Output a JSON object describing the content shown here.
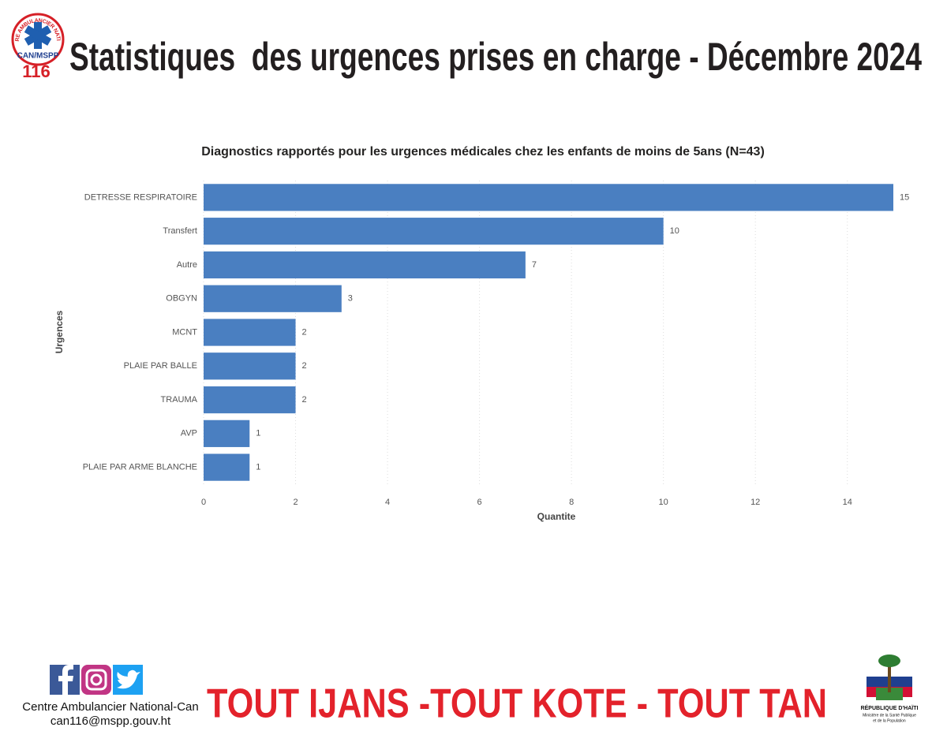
{
  "header": {
    "title": "Statistiques  des urgences prises en charge - Décembre 2024",
    "logo_ring": "CENTRE AMBULANCIER NATIONAL",
    "logo_org": "CAN/MSPP",
    "logo_number": "116"
  },
  "chart_data": {
    "type": "bar",
    "title": "Diagnostics rapportés pour les urgences médicales chez les enfants de moins de 5ans (N=43)",
    "x_label": "Quantite",
    "y_label": "Urgences",
    "categories": [
      "DETRESSE RESPIRATOIRE",
      "Transfert",
      "Autre",
      "OBGYN",
      "MCNT",
      "PLAIE PAR BALLE",
      "TRAUMA",
      "AVP",
      "PLAIE PAR ARME BLANCHE"
    ],
    "values": [
      15,
      10,
      7,
      3,
      2,
      2,
      2,
      1,
      1
    ],
    "color": "#4a7fc1",
    "xlim": [
      0,
      15
    ],
    "xticks": [
      0,
      2,
      4,
      6,
      8,
      10,
      12,
      14
    ],
    "grid": true
  },
  "footer": {
    "org": "Centre Ambulancier National-Can",
    "email": "can116@mspp.gouv.ht",
    "slogan": "TOUT IJANS -TOUT KOTE - TOUT TAN",
    "emblem_caption": "RÉPUBLIQUE D'HAÏTI",
    "ministry": [
      "Ministère de la Santé Publique",
      "et de la Population"
    ]
  }
}
